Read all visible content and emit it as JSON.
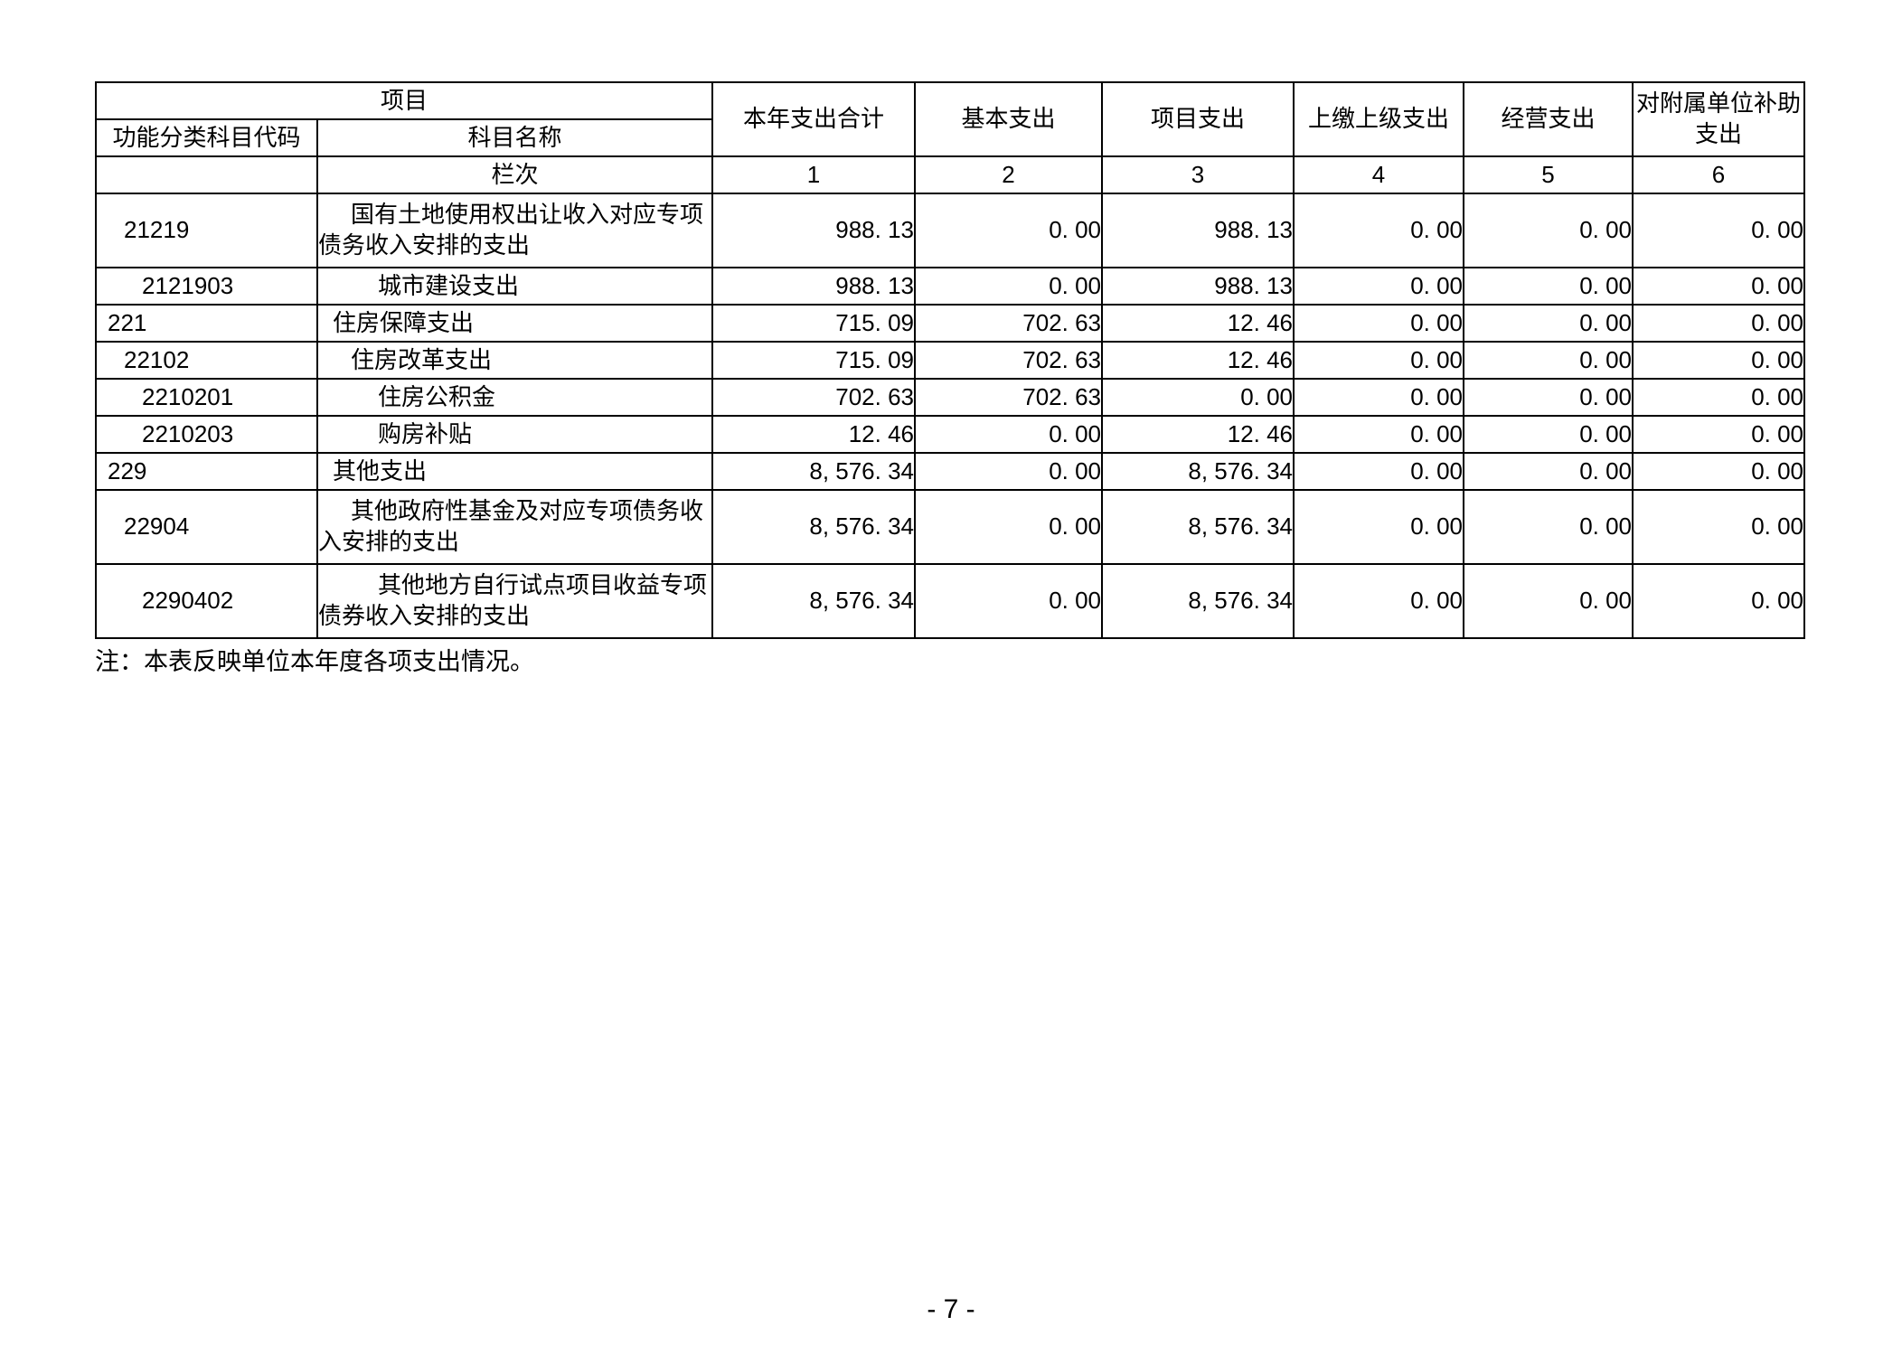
{
  "table": {
    "header": {
      "project_group_label": "项目",
      "code_label": "功能分类科目代码",
      "name_label": "科目名称",
      "lanci_label": "栏次",
      "columns": [
        "本年支出合计",
        "基本支出",
        "项目支出",
        "上缴上级支出",
        "经营支出",
        "对附属单位补助支出"
      ],
      "column_numbers": [
        "1",
        "2",
        "3",
        "4",
        "5",
        "6"
      ]
    },
    "rows": [
      {
        "code": "21219",
        "name": "国有土地使用权出让收入对应专项债务收入安排的支出",
        "level": 2,
        "tall": true,
        "values": [
          "988. 13",
          "0. 00",
          "988. 13",
          "0. 00",
          "0. 00",
          "0. 00"
        ]
      },
      {
        "code": "2121903",
        "name": "城市建设支出",
        "level": 3,
        "tall": false,
        "values": [
          "988. 13",
          "0. 00",
          "988. 13",
          "0. 00",
          "0. 00",
          "0. 00"
        ]
      },
      {
        "code": "221",
        "name": "住房保障支出",
        "level": 1,
        "tall": false,
        "values": [
          "715. 09",
          "702. 63",
          "12. 46",
          "0. 00",
          "0. 00",
          "0. 00"
        ]
      },
      {
        "code": "22102",
        "name": "住房改革支出",
        "level": 2,
        "tall": false,
        "values": [
          "715. 09",
          "702. 63",
          "12. 46",
          "0. 00",
          "0. 00",
          "0. 00"
        ]
      },
      {
        "code": "2210201",
        "name": "住房公积金",
        "level": 3,
        "tall": false,
        "values": [
          "702. 63",
          "702. 63",
          "0. 00",
          "0. 00",
          "0. 00",
          "0. 00"
        ]
      },
      {
        "code": "2210203",
        "name": "购房补贴",
        "level": 3,
        "tall": false,
        "values": [
          "12. 46",
          "0. 00",
          "12. 46",
          "0. 00",
          "0. 00",
          "0. 00"
        ]
      },
      {
        "code": "229",
        "name": "其他支出",
        "level": 1,
        "tall": false,
        "values": [
          "8, 576. 34",
          "0. 00",
          "8, 576. 34",
          "0. 00",
          "0. 00",
          "0. 00"
        ]
      },
      {
        "code": "22904",
        "name": "其他政府性基金及对应专项债务收入安排的支出",
        "level": 2,
        "tall": true,
        "values": [
          "8, 576. 34",
          "0. 00",
          "8, 576. 34",
          "0. 00",
          "0. 00",
          "0. 00"
        ]
      },
      {
        "code": "2290402",
        "name": "其他地方自行试点项目收益专项债券收入安排的支出",
        "level": 3,
        "tall": true,
        "values": [
          "8, 576. 34",
          "0. 00",
          "8, 576. 34",
          "0. 00",
          "0. 00",
          "0. 00"
        ]
      }
    ]
  },
  "note": "注：本表反映单位本年度各项支出情况。",
  "page_number": "- 7 -"
}
